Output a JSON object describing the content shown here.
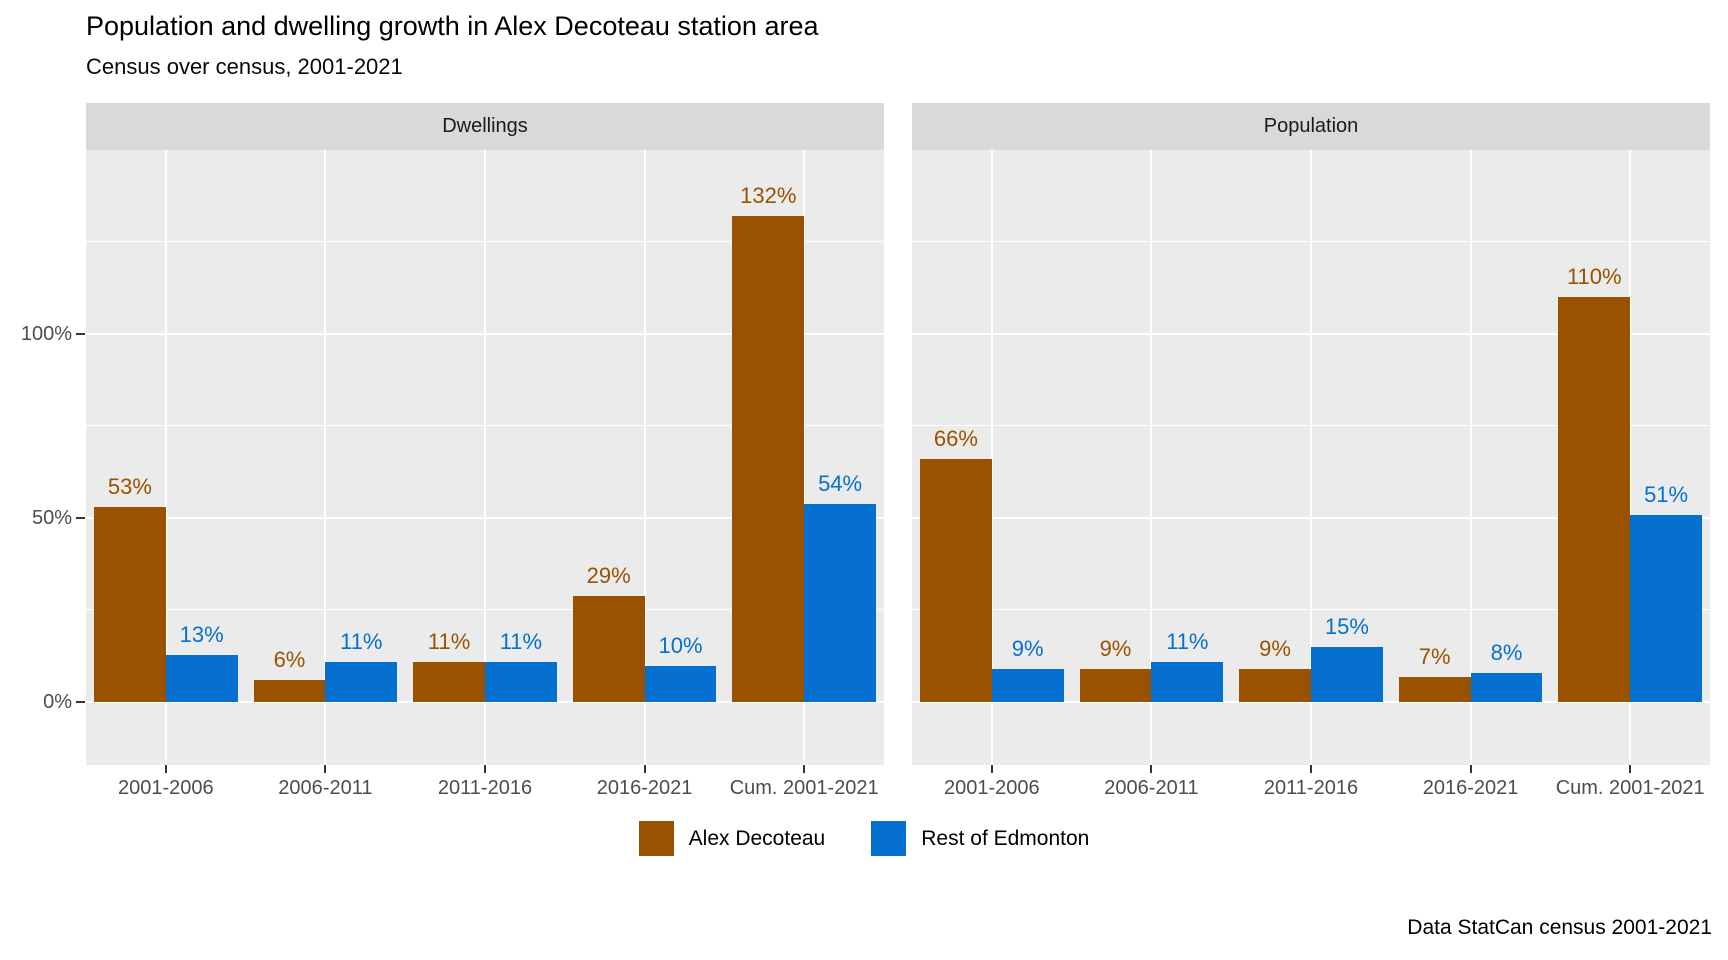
{
  "chart_data": {
    "type": "bar",
    "title": "Population and dwelling growth in Alex Decoteau station area",
    "subtitle": "Census over census, 2001-2021",
    "caption": "Data StatCan census 2001-2021",
    "categories": [
      "2001-2006",
      "2006-2011",
      "2011-2016",
      "2016-2021",
      "Cum. 2001-2021"
    ],
    "facets": [
      {
        "label": "Dwellings",
        "series": [
          {
            "name": "Alex Decoteau",
            "color": "#9a5200",
            "values": [
              53,
              6,
              11,
              29,
              132
            ]
          },
          {
            "name": "Rest of Edmonton",
            "color": "#0670d0",
            "values": [
              13,
              11,
              11,
              10,
              54
            ]
          }
        ]
      },
      {
        "label": "Population",
        "series": [
          {
            "name": "Alex Decoteau",
            "color": "#9a5200",
            "values": [
              66,
              9,
              9,
              7,
              110
            ]
          },
          {
            "name": "Rest of Edmonton",
            "color": "#0670d0",
            "values": [
              9,
              11,
              15,
              8,
              51
            ]
          }
        ]
      }
    ],
    "value_label_suffix": "%",
    "y_axis": {
      "ticks": [
        {
          "value": 0,
          "label": "0%"
        },
        {
          "value": 50,
          "label": "50%"
        },
        {
          "value": 100,
          "label": "100%"
        }
      ],
      "minor_breaks": [
        25,
        75,
        125
      ],
      "ylim": [
        -17,
        150
      ]
    },
    "legend": {
      "position": "bottom",
      "items": [
        {
          "label": "Alex Decoteau",
          "color": "#9a5200"
        },
        {
          "label": "Rest of Edmonton",
          "color": "#0670d0"
        }
      ]
    },
    "grid": true,
    "style": {
      "panel_background": "#ebebeb",
      "strip_background": "#d9d9d9",
      "gridline_color": "#ffffff",
      "axis_text_color": "#4d4d4d",
      "tick_color": "#333333"
    }
  }
}
